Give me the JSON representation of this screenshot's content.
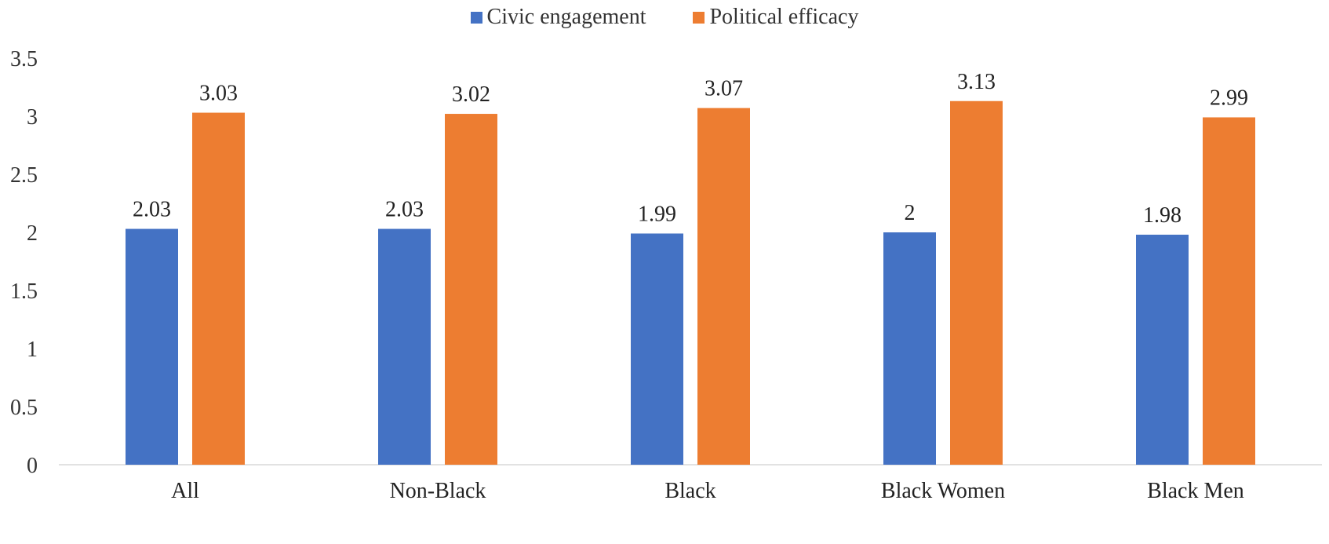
{
  "chart_data": {
    "type": "bar",
    "title": "",
    "xlabel": "",
    "ylabel": "",
    "ylim": [
      0,
      3.5
    ],
    "yticks": [
      "0",
      "0.5",
      "1",
      "1.5",
      "2",
      "2.5",
      "3",
      "3.5"
    ],
    "ytick_values": [
      0,
      0.5,
      1,
      1.5,
      2,
      2.5,
      3,
      3.5
    ],
    "grid": false,
    "legend_position": "top-center",
    "categories": [
      "All",
      "Non-Black",
      "Black",
      "Black Women",
      "Black Men"
    ],
    "series": [
      {
        "name": "Civic engagement",
        "color": "#4472C4",
        "values": [
          2.03,
          2.03,
          1.99,
          2,
          1.98
        ],
        "labels": [
          "2.03",
          "2.03",
          "1.99",
          "2",
          "1.98"
        ]
      },
      {
        "name": "Political efficacy",
        "color": "#ED7D31",
        "values": [
          3.03,
          3.02,
          3.07,
          3.13,
          2.99
        ],
        "labels": [
          "3.03",
          "3.02",
          "3.07",
          "3.13",
          "2.99"
        ]
      }
    ]
  }
}
